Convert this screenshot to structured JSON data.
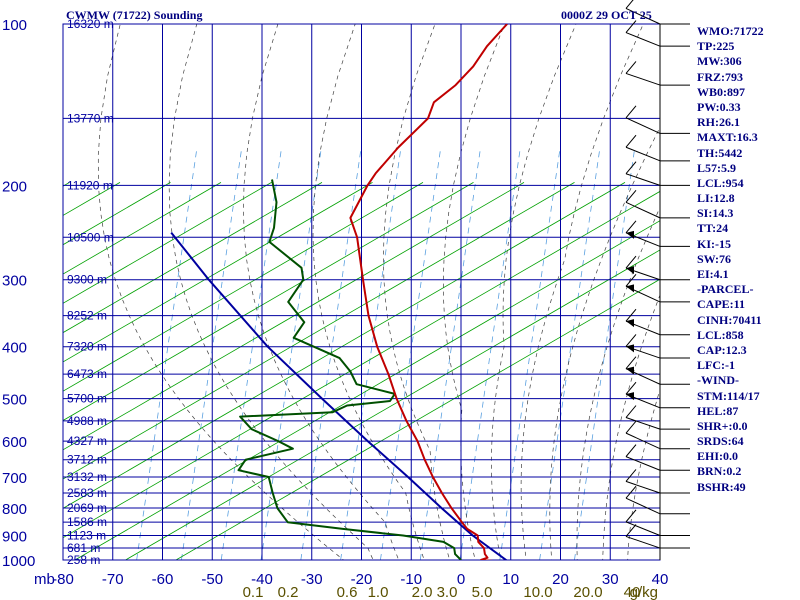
{
  "chart_data": {
    "type": "skew-t sounding",
    "title": "CWMW (71722) Sounding",
    "datetime": "0000Z 29 OCT 25",
    "pressure_unit": "mb",
    "pressure_axis": "log",
    "pressure_range": [
      1000,
      100
    ],
    "temperature_range": [
      -80,
      40
    ],
    "grid": true,
    "pressure_ticks": [
      100,
      200,
      300,
      400,
      500,
      600,
      700,
      800,
      900,
      1000
    ],
    "temperature_ticks": [
      "-80",
      "-70",
      "-60",
      "-50",
      "-40",
      "-30",
      "-20",
      "-10",
      "0",
      "10",
      "20",
      "30",
      "40"
    ],
    "height_labels": [
      {
        "p": 100,
        "label": "16320 m"
      },
      {
        "p": 150,
        "label": "13770 m"
      },
      {
        "p": 200,
        "label": "11920 m"
      },
      {
        "p": 250,
        "label": "10500 m"
      },
      {
        "p": 300,
        "label": "9300 m"
      },
      {
        "p": 350,
        "label": "8252 m"
      },
      {
        "p": 400,
        "label": "7320 m"
      },
      {
        "p": 450,
        "label": "6473 m"
      },
      {
        "p": 500,
        "label": "5700 m"
      },
      {
        "p": 550,
        "label": "4988 m"
      },
      {
        "p": 600,
        "label": "4327 m"
      },
      {
        "p": 650,
        "label": "3712 m"
      },
      {
        "p": 700,
        "label": "3132 m"
      },
      {
        "p": 750,
        "label": "2583 m"
      },
      {
        "p": 800,
        "label": "2069 m"
      },
      {
        "p": 850,
        "label": "1586 m"
      },
      {
        "p": 900,
        "label": "1123 m"
      },
      {
        "p": 950,
        "label": "681 m"
      },
      {
        "p": 1000,
        "label": "258 m"
      }
    ],
    "mixing_ratio_labels": [
      "0.1",
      "0.2",
      "0.6",
      "1.0",
      "2.0",
      "3.0",
      "5.0",
      "10.0",
      "20.0",
      "40"
    ],
    "mixing_ratio_unit": "g/kg",
    "temperature_profile": [
      {
        "p": 1010,
        "t": 10
      },
      {
        "p": 1000,
        "t": 4
      },
      {
        "p": 990,
        "t": 5
      },
      {
        "p": 975,
        "t": 4
      },
      {
        "p": 950,
        "t": 3
      },
      {
        "p": 925,
        "t": 1
      },
      {
        "p": 900,
        "t": 0
      },
      {
        "p": 875,
        "t": -3
      },
      {
        "p": 850,
        "t": -5
      },
      {
        "p": 800,
        "t": -9
      },
      {
        "p": 750,
        "t": -13
      },
      {
        "p": 700,
        "t": -17
      },
      {
        "p": 650,
        "t": -21
      },
      {
        "p": 600,
        "t": -25
      },
      {
        "p": 550,
        "t": -30
      },
      {
        "p": 500,
        "t": -35
      },
      {
        "p": 450,
        "t": -40
      },
      {
        "p": 400,
        "t": -46
      },
      {
        "p": 350,
        "t": -52
      },
      {
        "p": 300,
        "t": -58
      },
      {
        "p": 250,
        "t": -65
      },
      {
        "p": 230,
        "t": -69
      },
      {
        "p": 200,
        "t": -70
      },
      {
        "p": 190,
        "t": -70
      },
      {
        "p": 170,
        "t": -69
      },
      {
        "p": 150,
        "t": -67
      },
      {
        "p": 140,
        "t": -68
      },
      {
        "p": 130,
        "t": -66
      },
      {
        "p": 120,
        "t": -65
      },
      {
        "p": 110,
        "t": -65
      },
      {
        "p": 100,
        "t": -64
      }
    ],
    "dewpoint_profile": [
      {
        "p": 1000,
        "t": 0
      },
      {
        "p": 975,
        "t": -2
      },
      {
        "p": 950,
        "t": -3
      },
      {
        "p": 925,
        "t": -6
      },
      {
        "p": 900,
        "t": -15
      },
      {
        "p": 875,
        "t": -28
      },
      {
        "p": 850,
        "t": -40
      },
      {
        "p": 800,
        "t": -44
      },
      {
        "p": 750,
        "t": -47
      },
      {
        "p": 700,
        "t": -50
      },
      {
        "p": 680,
        "t": -57
      },
      {
        "p": 650,
        "t": -57
      },
      {
        "p": 620,
        "t": -49
      },
      {
        "p": 600,
        "t": -53
      },
      {
        "p": 570,
        "t": -60
      },
      {
        "p": 540,
        "t": -64
      },
      {
        "p": 530,
        "t": -46
      },
      {
        "p": 515,
        "t": -44
      },
      {
        "p": 505,
        "t": -36
      },
      {
        "p": 490,
        "t": -36
      },
      {
        "p": 470,
        "t": -45
      },
      {
        "p": 445,
        "t": -48
      },
      {
        "p": 420,
        "t": -52
      },
      {
        "p": 385,
        "t": -64
      },
      {
        "p": 360,
        "t": -64
      },
      {
        "p": 330,
        "t": -70
      },
      {
        "p": 300,
        "t": -70
      },
      {
        "p": 285,
        "t": -72
      },
      {
        "p": 255,
        "t": -82
      },
      {
        "p": 240,
        "t": -83
      },
      {
        "p": 215,
        "t": -86
      },
      {
        "p": 195,
        "t": -90
      }
    ],
    "parcel_path": [
      {
        "p": 1010,
        "t": 10
      },
      {
        "p": 900,
        "t": -1
      },
      {
        "p": 800,
        "t": -11
      },
      {
        "p": 700,
        "t": -22
      },
      {
        "p": 600,
        "t": -35
      },
      {
        "p": 500,
        "t": -50
      },
      {
        "p": 400,
        "t": -68
      },
      {
        "p": 300,
        "t": -89
      },
      {
        "p": 245,
        "t": -103
      }
    ],
    "indices": [
      "WMO:71722",
      "TP:225",
      "MW:306",
      "FRZ:793",
      "WB0:897",
      "PW:0.33",
      "RH:26.1",
      "MAXT:16.3",
      "TH:5442",
      "L57:5.9",
      "LCL:954",
      "LI:12.8",
      "SI:14.3",
      "TT:24",
      "KI:-15",
      "SW:76",
      "EI:4.1",
      "-PARCEL-",
      "CAPE:11",
      "CINH:70411",
      "LCL:858",
      "CAP:12.3",
      "LFC:-1",
      "-WIND-",
      "STM:114/17",
      "HEL:87",
      "SHR+:0.0",
      "SRDS:64",
      "EHI:0.0",
      "BRN:0.2",
      "BSHR:49"
    ],
    "colors": {
      "temperature": "#c00000",
      "dewpoint": "#005000",
      "parcel": "#0000a0",
      "isobar_isotherm": "#0000a0",
      "dry_adiabat": "#00a000",
      "moist_adiabat": "#404040",
      "mixing_ratio": "#5aa0e0",
      "text": "#000080",
      "mixing_label": "#5a5000"
    }
  }
}
